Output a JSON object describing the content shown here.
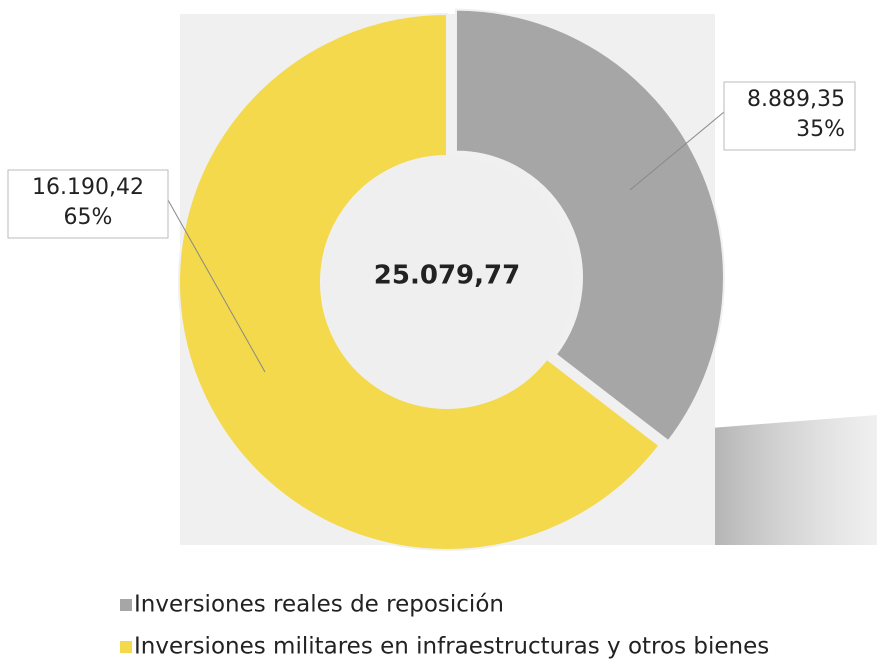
{
  "chart_data": {
    "type": "donut",
    "center_label": "25.079,77",
    "categories": [
      "Inversiones reales de reposición",
      "Inversiones militares en infraestructuras y otros bienes"
    ],
    "values": [
      8889.35,
      16190.42
    ],
    "value_labels": [
      "8.889,35",
      "16.190,42"
    ],
    "percent_labels": [
      "35%",
      "65%"
    ],
    "colors": [
      "#a6a6a6",
      "#f3d94b"
    ]
  }
}
